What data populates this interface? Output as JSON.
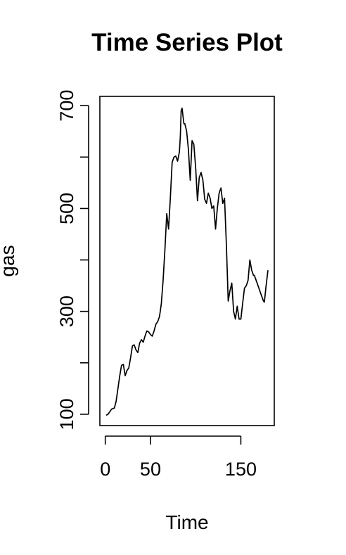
{
  "chart_data": {
    "type": "line",
    "title": "Time Series Plot",
    "xlabel": "Time",
    "ylabel": "gas",
    "xlim": [
      -6,
      187
    ],
    "ylim": [
      78,
      718
    ],
    "x_ticks": [
      0,
      50,
      150
    ],
    "y_ticks": [
      100,
      300,
      500,
      700
    ],
    "x_tick_labels": [
      "0",
      "50",
      "150"
    ],
    "y_tick_labels": [
      "100",
      "300",
      "500",
      "700"
    ],
    "grid": false,
    "legend": "none",
    "line_color": "#000000",
    "series": [
      {
        "x": [
          1,
          3,
          5,
          7,
          10,
          12,
          14,
          16,
          18,
          20,
          22,
          24,
          26,
          28,
          30,
          32,
          34,
          36,
          38,
          40,
          42,
          44,
          46,
          48,
          50,
          52,
          54,
          56,
          58,
          60,
          62,
          64,
          66,
          68,
          70,
          72,
          74,
          76,
          78,
          80,
          82,
          83,
          84,
          85,
          86,
          87,
          88,
          90,
          92,
          94,
          96,
          98,
          100,
          102,
          104,
          106,
          108,
          110,
          112,
          114,
          116,
          118,
          120,
          122,
          124,
          126,
          128,
          130,
          132,
          134,
          136,
          138,
          140,
          142,
          144,
          146,
          148,
          150,
          152,
          154,
          156,
          158,
          160,
          162,
          163,
          164,
          165,
          166,
          167,
          168,
          169,
          170,
          171,
          172,
          173,
          174,
          175,
          176,
          178,
          180
        ],
        "y": [
          98,
          100,
          105,
          110,
          112,
          125,
          150,
          175,
          195,
          197,
          175,
          185,
          190,
          210,
          233,
          235,
          225,
          220,
          238,
          245,
          240,
          252,
          262,
          260,
          255,
          252,
          262,
          275,
          280,
          290,
          315,
          360,
          420,
          490,
          460,
          520,
          590,
          600,
          602,
          592,
          610,
          640,
          690,
          695,
          680,
          665,
          665,
          650,
          615,
          555,
          632,
          625,
          580,
          515,
          560,
          570,
          555,
          518,
          510,
          530,
          520,
          500,
          505,
          460,
          500,
          530,
          540,
          510,
          520,
          430,
          320,
          340,
          355,
          300,
          285,
          310,
          285,
          285,
          315,
          345,
          350,
          360,
          400,
          380,
          375,
          370,
          370,
          365,
          360,
          355,
          350,
          345,
          340,
          335,
          330,
          325,
          320,
          318,
          350,
          380
        ]
      }
    ]
  }
}
